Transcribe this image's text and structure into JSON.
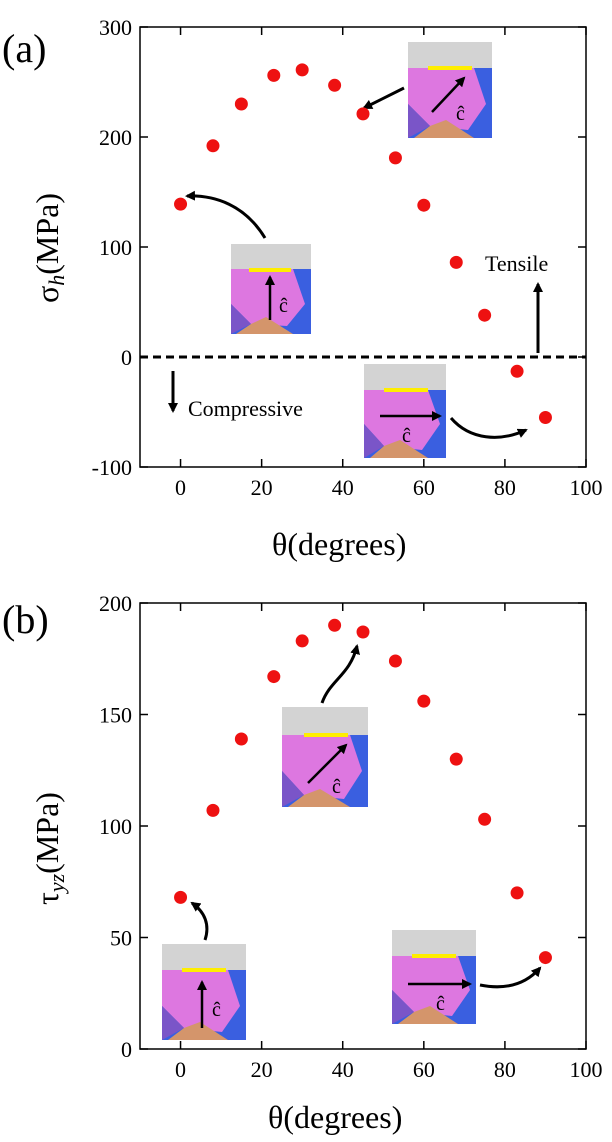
{
  "chart_data": [
    {
      "type": "scatter",
      "panel_label": "(a)",
      "xlabel": "θ(degrees)",
      "ylabel": "σh(MPa)",
      "xlim": [
        -10,
        100
      ],
      "ylim": [
        -100,
        300
      ],
      "xticks": [
        0,
        20,
        40,
        60,
        80,
        100
      ],
      "yticks": [
        -100,
        0,
        100,
        200,
        300
      ],
      "zero_line": "dashed",
      "marker_color": "#ee1111",
      "x": [
        0,
        8,
        15,
        23,
        30,
        38,
        45,
        53,
        60,
        68,
        75,
        83,
        90
      ],
      "y": [
        139,
        192,
        230,
        256,
        261,
        247,
        221,
        181,
        138,
        86,
        38,
        -13,
        -55
      ],
      "annotations": {
        "tensile": "Tensile",
        "compressive": "Compressive"
      }
    },
    {
      "type": "scatter",
      "panel_label": "(b)",
      "xlabel": "θ(degrees)",
      "ylabel": "τyz(MPa)",
      "xlim": [
        -10,
        100
      ],
      "ylim": [
        0,
        200
      ],
      "xticks": [
        0,
        20,
        40,
        60,
        80,
        100
      ],
      "yticks": [
        0,
        50,
        100,
        150,
        200
      ],
      "marker_color": "#ee1111",
      "x": [
        0,
        8,
        15,
        23,
        30,
        38,
        45,
        53,
        60,
        68,
        75,
        83,
        90
      ],
      "y": [
        68,
        107,
        139,
        167,
        183,
        190,
        187,
        174,
        156,
        130,
        103,
        70,
        41
      ]
    }
  ],
  "insets": {
    "c_hat": "ĉ"
  }
}
